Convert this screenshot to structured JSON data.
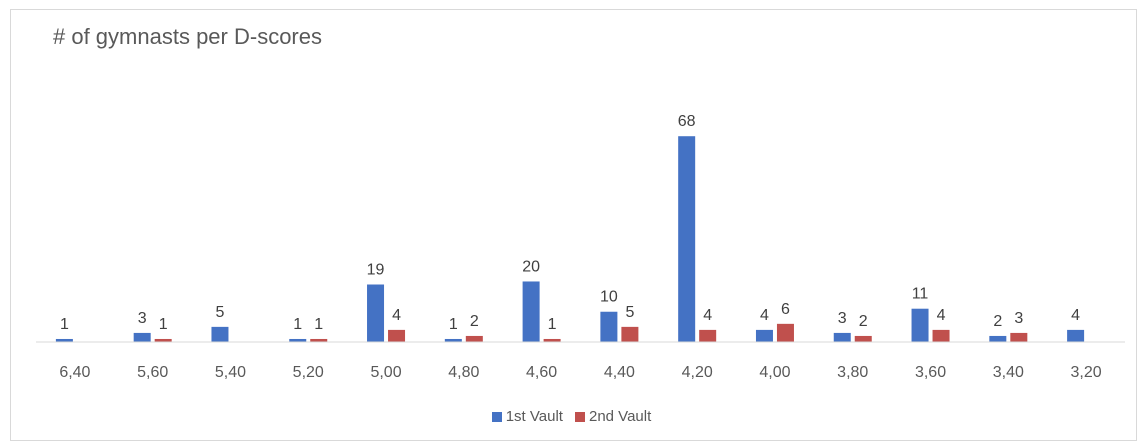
{
  "chart_data": {
    "type": "bar",
    "title": "# of gymnasts per D-scores",
    "xlabel": "",
    "ylabel": "",
    "ylim": [
      0,
      76
    ],
    "grid": false,
    "legend_position": "bottom",
    "categories": [
      "6,40",
      "5,60",
      "5,40",
      "5,20",
      "5,00",
      "4,80",
      "4,60",
      "4,40",
      "4,20",
      "4,00",
      "3,80",
      "3,60",
      "3,40",
      "3,20"
    ],
    "series": [
      {
        "name": "1st Vault",
        "color": "#4472c4",
        "values": [
          1,
          3,
          5,
          1,
          19,
          1,
          20,
          10,
          68,
          4,
          3,
          11,
          2,
          4
        ]
      },
      {
        "name": "2nd Vault",
        "color": "#c0504d",
        "values": [
          null,
          1,
          null,
          1,
          4,
          2,
          1,
          5,
          4,
          6,
          2,
          4,
          3,
          null
        ]
      }
    ]
  }
}
